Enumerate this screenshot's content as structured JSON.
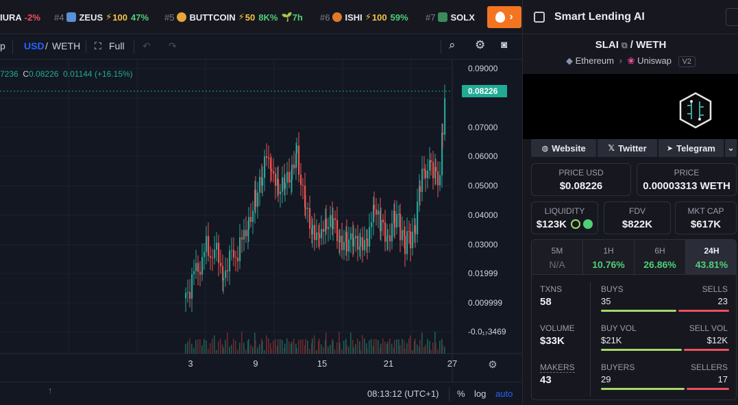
{
  "ticker": {
    "items": [
      {
        "rank": "",
        "name": "IURA",
        "change": "-2%"
      },
      {
        "rank": "#4",
        "name": "ZEUS",
        "boost": "100",
        "change": "47%"
      },
      {
        "rank": "#5",
        "name": "BUTTCOIN",
        "boost": "50",
        "change": "8K%",
        "age": "7h"
      },
      {
        "rank": "#6",
        "name": "ISHI",
        "boost": "100",
        "change": "59%"
      },
      {
        "rank": "#7",
        "name": "SOLX",
        "change": ""
      }
    ],
    "fire_label": "›"
  },
  "toolbar": {
    "left_fragment": "p",
    "usd": "USD",
    "pair_sep": "/",
    "weth": "WETH",
    "full": "Full"
  },
  "chart": {
    "ohlc_prefix": "7236",
    "close_label": "C",
    "close_value": "0.08226",
    "change_value": "0.01144",
    "change_pct": "(+16.15%)",
    "price_labels": [
      "0.09000",
      "0.07000",
      "0.06000",
      "0.05000",
      "0.04000",
      "0.03000",
      "0.01999",
      "0.009999",
      "-0.0₁₇3469"
    ],
    "current_price": "0.08226",
    "date_labels": [
      "3",
      "9",
      "15",
      "21",
      "27"
    ],
    "time": "08:13:12 (UTC+1)",
    "pct": "%",
    "log": "log",
    "auto": "auto"
  },
  "chart_data": {
    "type": "candlestick",
    "quote": "USD",
    "x_ticks": [
      "3",
      "9",
      "15",
      "21",
      "27"
    ],
    "y_ticks": [
      "0.09000",
      "0.07000",
      "0.06000",
      "0.05000",
      "0.04000",
      "0.03000",
      "0.01999",
      "0.009999",
      "-0.0₁₇3469"
    ],
    "ylim": [
      -0.01,
      0.095
    ],
    "last_close": 0.08226
  },
  "panel": {
    "title": "Smart Lending AI",
    "base": "SLAI",
    "sep": "/",
    "quote": "WETH",
    "chain": "Ethereum",
    "chain_arrow": "›",
    "dex": "Uniswap",
    "version": "V2",
    "links": [
      "Website",
      "Twitter",
      "Telegram"
    ],
    "price_usd_label": "PRICE USD",
    "price_usd": "$0.08226",
    "price_label": "PRICE",
    "price_weth": "0.00003313 WETH",
    "liquidity_label": "LIQUIDITY",
    "liquidity": "$123K",
    "fdv_label": "FDV",
    "fdv": "$822K",
    "mktcap_label": "MKT CAP",
    "mktcap": "$617K",
    "timeframes": [
      {
        "name": "5M",
        "value": "N/A"
      },
      {
        "name": "1H",
        "value": "10.76%"
      },
      {
        "name": "6H",
        "value": "26.86%"
      },
      {
        "name": "24H",
        "value": "43.81%"
      }
    ],
    "txns_label": "TXNS",
    "txns": "58",
    "buys_label": "BUYS",
    "buys": "35",
    "sells_label": "SELLS",
    "sells": "23",
    "volume_label": "VOLUME",
    "volume": "$33K",
    "buy_vol_label": "BUY VOL",
    "buy_vol": "$21K",
    "sell_vol_label": "SELL VOL",
    "sell_vol": "$12K",
    "makers_label": "MAKERS",
    "makers": "43",
    "buyers_label": "BUYERS",
    "buyers": "29",
    "sellers_label": "SELLERS",
    "sellers": "17"
  }
}
